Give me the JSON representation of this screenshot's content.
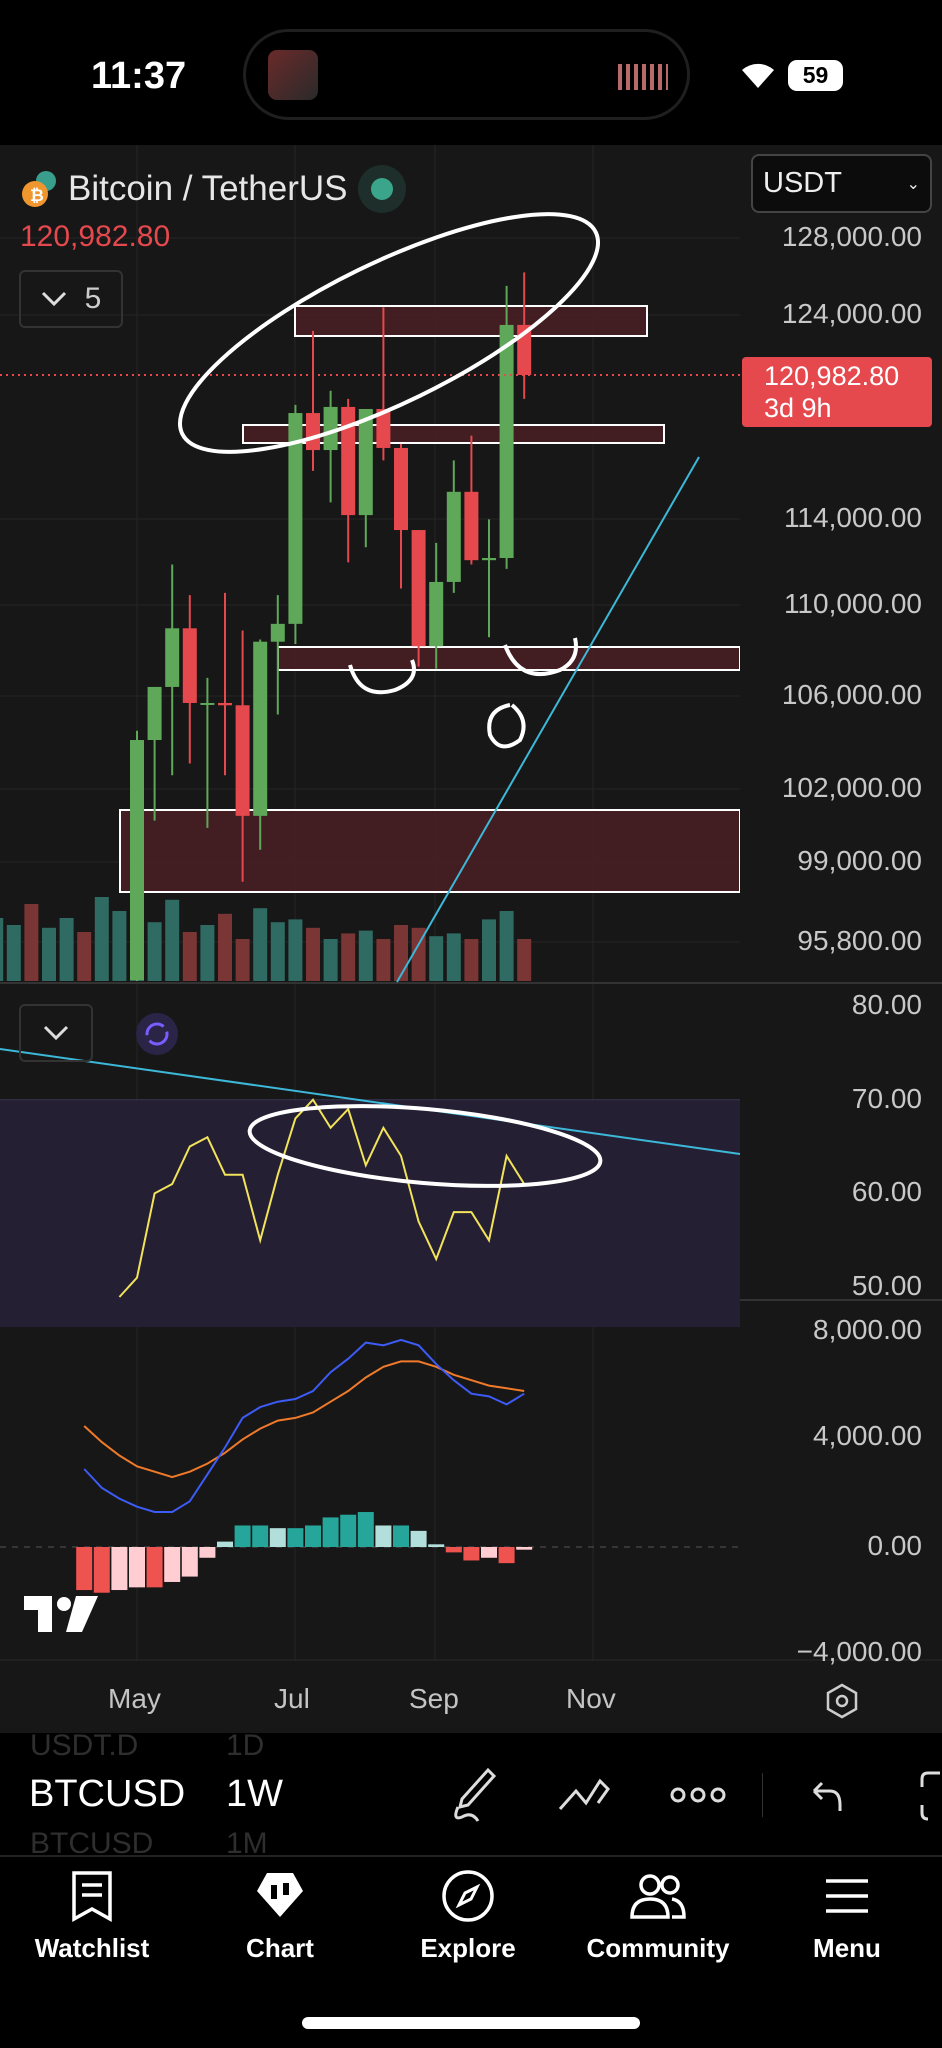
{
  "status_bar": {
    "time": "11:37",
    "battery": "59"
  },
  "header": {
    "symbol_title": "Bitcoin / TetherUS",
    "last_price": "120,982.80",
    "indicator_count": "5",
    "currency": "USDT"
  },
  "price_label": {
    "price": "120,982.80",
    "countdown": "3d 9h"
  },
  "colors": {
    "up": "#5fa85a",
    "down": "#e5484d",
    "rsi": "#f2e35a",
    "macd": "#3d5bf5",
    "signal": "#f07a2a",
    "trendline": "#3db8d8",
    "zone_fill": "#4a1f24"
  },
  "chart_data": [
    {
      "type": "candlestick",
      "scale": "log",
      "ylim": [
        95800,
        128000
      ],
      "y_ticks": [
        "128,000.00",
        "124,000.00",
        "114,000.00",
        "110,000.00",
        "106,000.00",
        "102,000.00",
        "99,000.00",
        "95,800.00"
      ],
      "x_ticks": [
        "May",
        "Jul",
        "Sep",
        "Nov"
      ],
      "candles": [
        [
          94300,
          104500,
          93400,
          104100
        ],
        [
          104100,
          106400,
          100700,
          106400
        ],
        [
          106400,
          111900,
          102600,
          109000
        ],
        [
          109000,
          110500,
          103100,
          105700
        ],
        [
          105700,
          106800,
          100400,
          105700
        ],
        [
          105700,
          110600,
          102600,
          105600
        ],
        [
          105600,
          108900,
          98200,
          100900
        ],
        [
          100900,
          108500,
          99500,
          108400
        ],
        [
          108400,
          110500,
          105200,
          109200
        ],
        [
          109200,
          119500,
          108300,
          119100
        ],
        [
          119100,
          123200,
          116300,
          117300
        ],
        [
          117300,
          120200,
          114800,
          119400
        ],
        [
          119400,
          119800,
          112000,
          114200
        ],
        [
          114200,
          119300,
          112700,
          119300
        ],
        [
          119300,
          124400,
          116800,
          117400
        ],
        [
          117400,
          117600,
          110800,
          113500
        ],
        [
          113500,
          113500,
          107300,
          108200
        ],
        [
          108200,
          112900,
          107200,
          111100
        ],
        [
          111100,
          116800,
          110600,
          115300
        ],
        [
          115300,
          118000,
          111900,
          112100
        ],
        [
          112100,
          114000,
          108600,
          112200
        ],
        [
          112200,
          125500,
          111700,
          123500
        ],
        [
          123500,
          126200,
          119800,
          120982.8
        ]
      ],
      "volume": [
        40,
        55,
        70,
        60,
        45,
        95,
        80,
        50,
        60,
        75,
        65,
        55,
        85,
        45,
        40,
        55,
        38,
        45,
        35,
        60,
        50,
        45,
        42,
        58,
        35,
        40,
        48,
        30,
        52,
        42,
        44,
        38,
        30,
        34,
        36,
        30,
        40,
        38,
        32,
        34,
        30,
        44,
        50,
        30
      ],
      "annotations": {
        "current_price": 120982.8
      }
    },
    {
      "type": "line",
      "name_visible": false,
      "ylim": [
        50,
        80
      ],
      "y_ticks": [
        "80.00",
        "70.00",
        "60.00",
        "50.00"
      ],
      "rsi": [
        48,
        51,
        60,
        61,
        65,
        66,
        62,
        62,
        55,
        62,
        68,
        70,
        67,
        69,
        63,
        67,
        64,
        57,
        53,
        58,
        58,
        55,
        64,
        61
      ]
    },
    {
      "type": "line+bar",
      "ylim": [
        -4500,
        8500
      ],
      "y_ticks": [
        "8,000.00",
        "4,000.00",
        "0.00",
        "−4,000.00"
      ],
      "macd": [
        2900,
        2200,
        1800,
        1500,
        1300,
        1300,
        1700,
        2700,
        3700,
        4800,
        5200,
        5400,
        5500,
        5800,
        6500,
        7000,
        7600,
        7500,
        7700,
        7500,
        6800,
        6200,
        5700,
        5600,
        5300,
        5700
      ],
      "signal": [
        4500,
        3900,
        3400,
        3000,
        2800,
        2600,
        2800,
        3100,
        3500,
        4000,
        4400,
        4700,
        4800,
        5000,
        5400,
        5800,
        6300,
        6700,
        6900,
        6900,
        6700,
        6400,
        6200,
        6000,
        5900,
        5800
      ],
      "histogram": [
        -1600,
        -1700,
        -1600,
        -1500,
        -1500,
        -1300,
        -1100,
        -400,
        200,
        800,
        800,
        700,
        700,
        800,
        1100,
        1200,
        1300,
        800,
        800,
        600,
        100,
        -200,
        -500,
        -400,
        -600,
        -100
      ]
    }
  ],
  "toolbar": {
    "prev_symbol": "USDT.D",
    "prev_interval": "1D",
    "symbol": "BTCUSD",
    "interval": "1W",
    "next_symbol": "BTCUSD",
    "next_interval": "1M"
  },
  "tabs": [
    {
      "label": "Watchlist"
    },
    {
      "label": "Chart"
    },
    {
      "label": "Explore"
    },
    {
      "label": "Community"
    },
    {
      "label": "Menu"
    }
  ]
}
